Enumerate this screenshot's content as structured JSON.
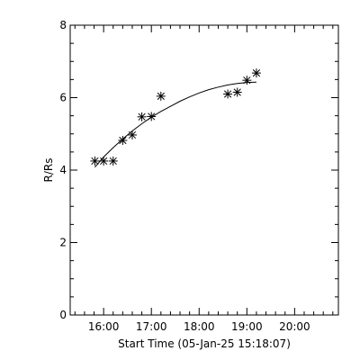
{
  "chart_data": {
    "type": "scatter",
    "xlabel": "Start Time (05-Jan-25 15:18:07)",
    "ylabel": "R/Rs",
    "x_tick_labels": [
      "16:00",
      "17:00",
      "18:00",
      "19:00",
      "20:00"
    ],
    "y_tick_labels": [
      "0",
      "2",
      "4",
      "6",
      "8"
    ],
    "xlim": [
      "15:18",
      "20:55"
    ],
    "ylim": [
      0,
      8
    ],
    "grid": false,
    "marker": "asterisk",
    "series": [
      {
        "points": [
          {
            "x": "15:49",
            "y": 4.25
          },
          {
            "x": "16:00",
            "y": 4.25
          },
          {
            "x": "16:12",
            "y": 4.25
          },
          {
            "x": "16:24",
            "y": 4.82
          },
          {
            "x": "16:36",
            "y": 4.97
          },
          {
            "x": "16:48",
            "y": 5.47
          },
          {
            "x": "17:00",
            "y": 5.48
          },
          {
            "x": "17:12",
            "y": 6.04
          },
          {
            "x": "18:36",
            "y": 6.1
          },
          {
            "x": "18:48",
            "y": 6.15
          },
          {
            "x": "19:00",
            "y": 6.48
          },
          {
            "x": "19:12",
            "y": 6.68
          }
        ]
      }
    ],
    "fit_curve": [
      {
        "x": "15:49",
        "y": 4.08
      },
      {
        "x": "16:00",
        "y": 4.36
      },
      {
        "x": "16:12",
        "y": 4.62
      },
      {
        "x": "16:24",
        "y": 4.86
      },
      {
        "x": "16:36",
        "y": 5.08
      },
      {
        "x": "16:48",
        "y": 5.28
      },
      {
        "x": "17:00",
        "y": 5.46
      },
      {
        "x": "17:12",
        "y": 5.62
      },
      {
        "x": "17:24",
        "y": 5.76
      },
      {
        "x": "17:36",
        "y": 5.9
      },
      {
        "x": "17:48",
        "y": 6.02
      },
      {
        "x": "18:00",
        "y": 6.13
      },
      {
        "x": "18:12",
        "y": 6.22
      },
      {
        "x": "18:24",
        "y": 6.29
      },
      {
        "x": "18:36",
        "y": 6.35
      },
      {
        "x": "18:48",
        "y": 6.39
      },
      {
        "x": "19:00",
        "y": 6.42
      },
      {
        "x": "19:12",
        "y": 6.43
      }
    ]
  }
}
